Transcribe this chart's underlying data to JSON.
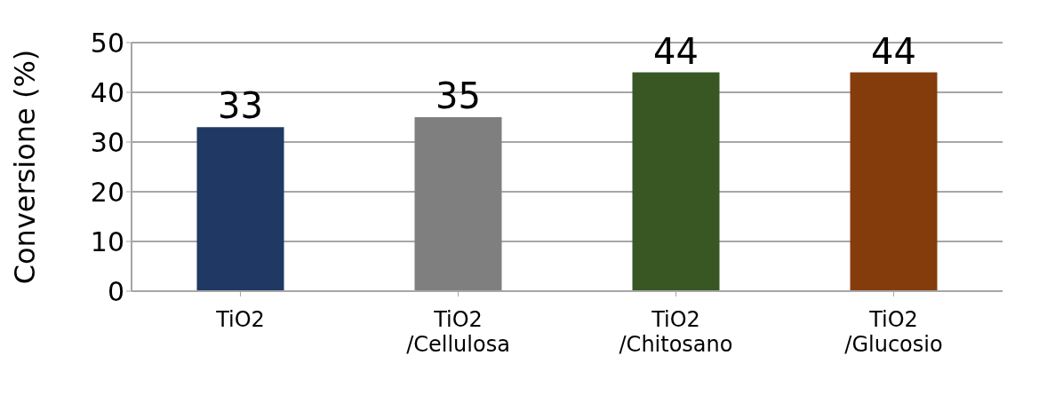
{
  "chart_data": {
    "type": "bar",
    "ylabel": "Conversione (%)",
    "categories": [
      "TiO2",
      "TiO2\n/Cellulosa",
      "TiO2\n/Chitosano",
      "TiO2\n/Glucosio"
    ],
    "values": [
      33,
      35,
      44,
      44
    ],
    "colors": [
      "#203864",
      "#7f7f7f",
      "#385723",
      "#843c0c"
    ],
    "ylim": [
      0,
      50
    ],
    "yticks": [
      0,
      10,
      20,
      30,
      40,
      50
    ],
    "grid": "y",
    "data_labels": true
  }
}
